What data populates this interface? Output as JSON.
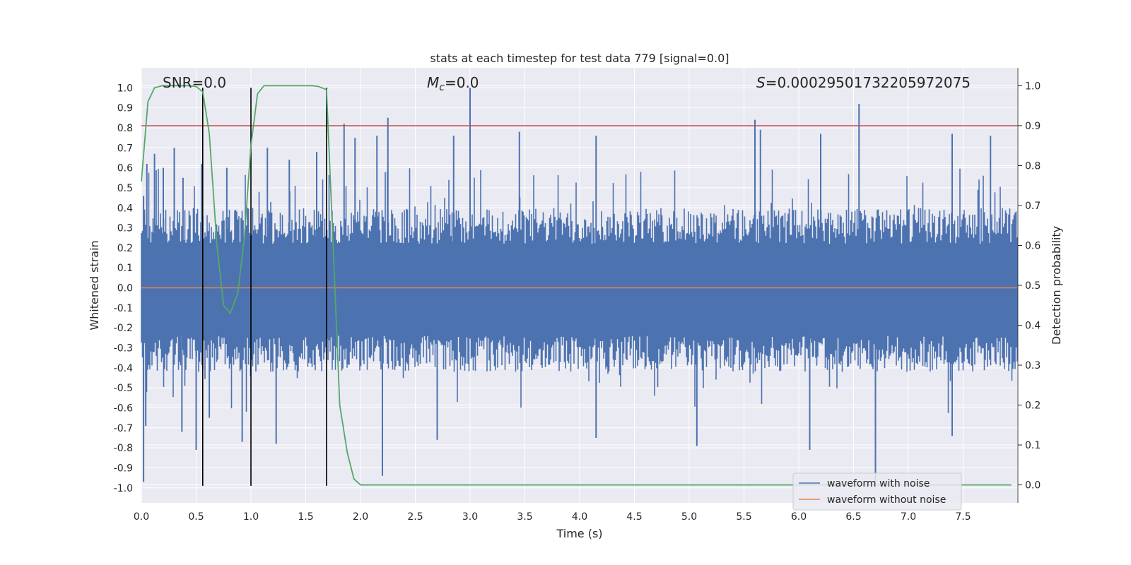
{
  "chart_data": {
    "type": "line",
    "title": "stats at each timestep for test data 779 [signal=0.0]",
    "xlabel": "Time (s)",
    "ylabel": "Whitened strain",
    "y2label": "Detection probability",
    "xlim": [
      0.0,
      8.0
    ],
    "ylim": [
      -1.075,
      1.1
    ],
    "y2lim": [
      -0.045,
      1.045
    ],
    "xticks": [
      "0.0",
      "0.5",
      "1.0",
      "1.5",
      "2.0",
      "2.5",
      "3.0",
      "3.5",
      "4.0",
      "4.5",
      "5.0",
      "5.5",
      "6.0",
      "6.5",
      "7.0",
      "7.5"
    ],
    "yticks": [
      "1.0",
      "0.9",
      "0.8",
      "0.7",
      "0.6",
      "0.5",
      "0.4",
      "0.3",
      "0.2",
      "0.1",
      "0.0",
      "-0.1",
      "-0.2",
      "-0.3",
      "-0.4",
      "-0.5",
      "-0.6",
      "-0.7",
      "-0.8",
      "-0.9",
      "-1.0"
    ],
    "y2ticks": [
      "1.0",
      "0.9",
      "0.8",
      "0.7",
      "0.6",
      "0.5",
      "0.4",
      "0.3",
      "0.2",
      "0.1",
      "0.0"
    ],
    "grid": true,
    "legend_position": "lower-right",
    "annotations": {
      "snr": "SNR=0.0",
      "mc_symbol": "M",
      "mc_sub": "c",
      "mc_value": "=0.0",
      "s_symbol": "S",
      "s_value": "=0.00029501732205972075"
    },
    "threshold": {
      "value": 0.9,
      "axis": "right",
      "color": "#c44e52"
    },
    "vertical_lines": {
      "x": [
        0.56,
        1.0,
        1.69
      ],
      "y_range": [
        -0.99,
        1.0
      ],
      "color": "#000000"
    },
    "series": [
      {
        "name": "waveform with noise",
        "color": "#4c72b0",
        "style": "noise-band",
        "range_s": [
          0.0,
          8.0
        ],
        "typical_amplitude": 0.4,
        "spikes": [
          {
            "x": 0.02,
            "y": 0.46
          },
          {
            "x": 0.05,
            "y": 0.62
          },
          {
            "x": 0.12,
            "y": 0.67
          },
          {
            "x": 0.2,
            "y": 0.6
          },
          {
            "x": 0.3,
            "y": 0.7
          },
          {
            "x": 0.38,
            "y": 0.55
          },
          {
            "x": 0.55,
            "y": 0.62
          },
          {
            "x": 0.78,
            "y": 0.6
          },
          {
            "x": 1.15,
            "y": 0.7
          },
          {
            "x": 1.35,
            "y": 0.64
          },
          {
            "x": 1.6,
            "y": 0.68
          },
          {
            "x": 1.85,
            "y": 0.82
          },
          {
            "x": 1.95,
            "y": 0.75
          },
          {
            "x": 2.15,
            "y": 0.76
          },
          {
            "x": 2.25,
            "y": 0.85
          },
          {
            "x": 2.85,
            "y": 0.76
          },
          {
            "x": 3.0,
            "y": 1.0
          },
          {
            "x": 3.45,
            "y": 0.78
          },
          {
            "x": 4.15,
            "y": 0.76
          },
          {
            "x": 5.6,
            "y": 0.84
          },
          {
            "x": 5.65,
            "y": 0.79
          },
          {
            "x": 6.2,
            "y": 0.77
          },
          {
            "x": 6.55,
            "y": 0.92
          },
          {
            "x": 7.4,
            "y": 0.77
          },
          {
            "x": 7.75,
            "y": 0.76
          },
          {
            "x": 0.02,
            "y": -0.97
          },
          {
            "x": 0.04,
            "y": -0.69
          },
          {
            "x": 0.37,
            "y": -0.72
          },
          {
            "x": 0.5,
            "y": -0.81
          },
          {
            "x": 0.62,
            "y": -0.65
          },
          {
            "x": 0.92,
            "y": -0.77
          },
          {
            "x": 1.23,
            "y": -0.78
          },
          {
            "x": 2.2,
            "y": -0.94
          },
          {
            "x": 2.7,
            "y": -0.76
          },
          {
            "x": 4.15,
            "y": -0.75
          },
          {
            "x": 5.07,
            "y": -0.79
          },
          {
            "x": 6.1,
            "y": -0.81
          },
          {
            "x": 6.7,
            "y": -0.98
          },
          {
            "x": 7.4,
            "y": -0.74
          }
        ]
      },
      {
        "name": "waveform without noise",
        "color": "#dd8452",
        "x": [
          0.0,
          8.0
        ],
        "y": [
          0.0,
          0.0
        ]
      },
      {
        "name": "detection probability",
        "color": "#55a868",
        "axis": "right",
        "x": [
          0.0,
          0.06,
          0.12,
          0.19,
          0.25,
          0.31,
          0.38,
          0.44,
          0.5,
          0.56,
          0.62,
          0.69,
          0.75,
          0.81,
          0.88,
          0.94,
          1.0,
          1.06,
          1.12,
          1.19,
          1.25,
          1.31,
          1.38,
          1.44,
          1.5,
          1.56,
          1.62,
          1.69,
          1.75,
          1.81,
          1.88,
          1.94,
          2.0,
          2.5,
          3.0,
          4.0,
          5.0,
          6.0,
          7.0,
          7.94
        ],
        "y": [
          0.76,
          0.96,
          0.995,
          1.0,
          1.0,
          1.0,
          1.0,
          1.0,
          0.998,
          0.985,
          0.88,
          0.6,
          0.45,
          0.43,
          0.48,
          0.62,
          0.85,
          0.98,
          1.0,
          1.0,
          1.0,
          1.0,
          1.0,
          1.0,
          1.0,
          1.0,
          0.998,
          0.99,
          0.6,
          0.2,
          0.08,
          0.015,
          0.0,
          0.0,
          0.0,
          0.0,
          0.0,
          0.0,
          0.0,
          0.0
        ]
      }
    ]
  }
}
